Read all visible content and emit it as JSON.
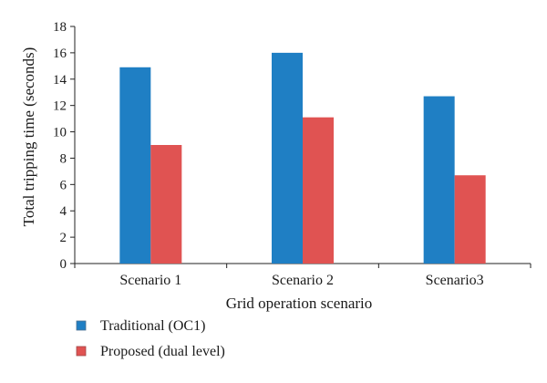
{
  "chart_data": {
    "type": "bar",
    "title": "",
    "xlabel": "Grid operation scenario",
    "ylabel": "Total tripping time (seconds)",
    "categories": [
      "Scenario 1",
      "Scenario 2",
      "Scenario3"
    ],
    "series": [
      {
        "name": "Traditional (OC1)",
        "values": [
          14.9,
          16.0,
          12.7
        ],
        "color": "#1f7fc4"
      },
      {
        "name": "Proposed (dual level)",
        "values": [
          9.0,
          11.1,
          6.7
        ],
        "color": "#e05352"
      }
    ],
    "ylim": [
      0,
      18
    ],
    "yticks": [
      "0",
      "2",
      "4",
      "6",
      "8",
      "10",
      "12",
      "14",
      "16",
      "18"
    ],
    "grid": false,
    "legend_position": "bottom-left"
  }
}
